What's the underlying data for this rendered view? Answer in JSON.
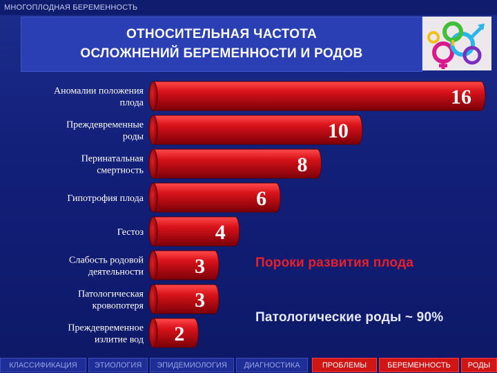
{
  "header": {
    "section_title": "МНОГОПЛОДНАЯ БЕРЕМЕННОСТЬ",
    "title_line1": "ОТНОСИТЕЛЬНАЯ ЧАСТОТА",
    "title_line2": "ОСЛОЖНЕНИЙ БЕРЕМЕННОСТИ И РОДОВ"
  },
  "chart_data": {
    "type": "bar",
    "orientation": "horizontal",
    "categories": [
      [
        "Аномалии положения",
        "плода"
      ],
      [
        "Преждевременные",
        "роды"
      ],
      [
        "Перинатальная",
        "смертность"
      ],
      [
        "Гипотрофия плода"
      ],
      [
        "Гестоз"
      ],
      [
        "Слабость родовой",
        "деятельности"
      ],
      [
        "Патологическая",
        "кровопотеря"
      ],
      [
        "Преждевременное",
        "излитие вод"
      ]
    ],
    "values": [
      16,
      10,
      8,
      6,
      4,
      3,
      3,
      2
    ],
    "value_labels": [
      "16",
      "10",
      "8",
      "6",
      "4",
      "3",
      "3",
      "2"
    ],
    "bar_color": "#c80c14",
    "grid": false,
    "legend": "none"
  },
  "notes": {
    "note1": "Пороки развития плода",
    "note2": "Патологические роды ~ 90%"
  },
  "nav": {
    "items": [
      "КЛАССИФИКАЦИЯ",
      "ЭТИОЛОГИЯ",
      "ЭПИДЕМИОЛОГИЯ",
      "ДИАГНОСТИКА",
      "ПРОБЛЕМЫ",
      "БЕРЕМЕННОСТЬ",
      "РОДЫ"
    ]
  },
  "colors": {
    "background": "#13207a",
    "title_box": "#2b3fb4",
    "bar": "#c80c14",
    "note_red": "#e8202a",
    "nav_active": "#d01515"
  }
}
